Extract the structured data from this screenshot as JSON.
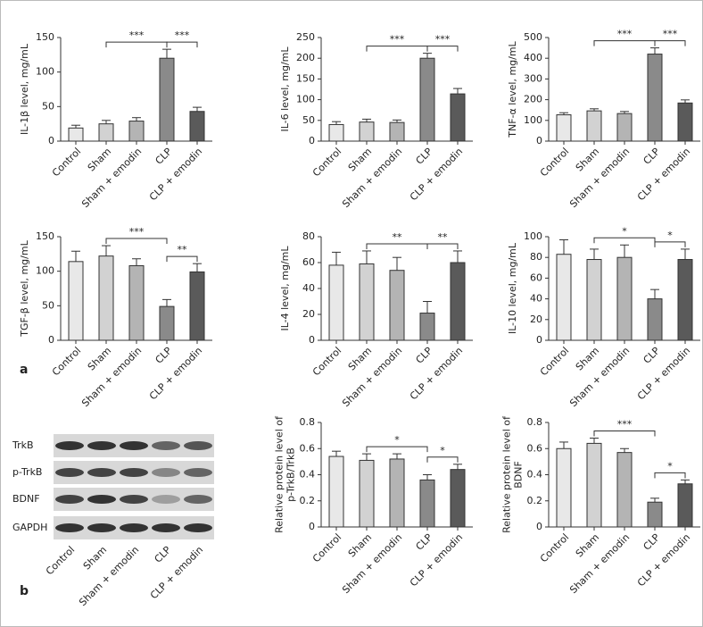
{
  "chart_data": [
    {
      "type": "bar",
      "ylabel": [
        "IL-1β level, mg/mL"
      ],
      "categories": [
        "Control",
        "Sham",
        "Sham + emodin",
        "CLP",
        "CLP + emodin"
      ],
      "values": [
        19,
        25,
        29,
        120,
        43
      ],
      "errors": [
        4,
        5,
        5,
        13,
        6
      ],
      "colors": [
        "#e8e8e8",
        "#d2d2d2",
        "#b4b4b4",
        "#8a8a8a",
        "#5a5a5a"
      ],
      "ylim": [
        0,
        150
      ],
      "yticks": [
        0,
        50,
        100,
        150
      ],
      "annotations": [
        {
          "text": "***",
          "from": "Sham",
          "to": "CLP"
        },
        {
          "text": "***",
          "from": "CLP",
          "to": "CLP + emodin"
        }
      ]
    },
    {
      "type": "bar",
      "ylabel": [
        "IL-6 level, mg/mL"
      ],
      "categories": [
        "Control",
        "Sham",
        "Sham + emodin",
        "CLP",
        "CLP + emodin"
      ],
      "values": [
        40,
        46,
        45,
        200,
        114
      ],
      "errors": [
        7,
        7,
        6,
        12,
        13
      ],
      "colors": [
        "#e8e8e8",
        "#d2d2d2",
        "#b4b4b4",
        "#8a8a8a",
        "#5a5a5a"
      ],
      "ylim": [
        0,
        250
      ],
      "yticks": [
        0,
        50,
        100,
        150,
        200,
        250
      ],
      "annotations": [
        {
          "text": "***",
          "from": "Sham",
          "to": "CLP"
        },
        {
          "text": "***",
          "from": "CLP",
          "to": "CLP + emodin"
        }
      ]
    },
    {
      "type": "bar",
      "ylabel": [
        "TNF-α level, mg/mL"
      ],
      "categories": [
        "Control",
        "Sham",
        "Sham + emodin",
        "CLP",
        "CLP + emodin"
      ],
      "values": [
        127,
        146,
        133,
        420,
        184
      ],
      "errors": [
        10,
        10,
        10,
        30,
        15
      ],
      "colors": [
        "#e8e8e8",
        "#d2d2d2",
        "#b4b4b4",
        "#8a8a8a",
        "#5a5a5a"
      ],
      "ylim": [
        0,
        500
      ],
      "yticks": [
        0,
        100,
        200,
        300,
        400,
        500
      ],
      "annotations": [
        {
          "text": "***",
          "from": "Sham",
          "to": "CLP"
        },
        {
          "text": "***",
          "from": "CLP",
          "to": "CLP + emodin"
        }
      ]
    },
    {
      "type": "bar",
      "ylabel": [
        "TGF-β level, mg/mL"
      ],
      "categories": [
        "Control",
        "Sham",
        "Sham + emodin",
        "CLP",
        "CLP + emodin"
      ],
      "values": [
        114,
        122,
        108,
        49,
        99
      ],
      "errors": [
        15,
        15,
        10,
        10,
        12
      ],
      "colors": [
        "#e8e8e8",
        "#d2d2d2",
        "#b4b4b4",
        "#8a8a8a",
        "#5a5a5a"
      ],
      "ylim": [
        0,
        150
      ],
      "yticks": [
        0,
        50,
        100,
        150
      ],
      "annotations": [
        {
          "text": "***",
          "from": "Sham",
          "to": "CLP"
        },
        {
          "text": "**",
          "from": "CLP",
          "to": "CLP + emodin"
        }
      ]
    },
    {
      "type": "bar",
      "ylabel": [
        "IL-4 level, mg/mL"
      ],
      "categories": [
        "Control",
        "Sham",
        "Sham + emodin",
        "CLP",
        "CLP + emodin"
      ],
      "values": [
        58,
        59,
        54,
        21,
        60
      ],
      "errors": [
        10,
        10,
        10,
        9,
        9
      ],
      "colors": [
        "#e8e8e8",
        "#d2d2d2",
        "#b4b4b4",
        "#8a8a8a",
        "#5a5a5a"
      ],
      "ylim": [
        0,
        80
      ],
      "yticks": [
        0,
        20,
        40,
        60,
        80
      ],
      "annotations": [
        {
          "text": "**",
          "from": "Sham",
          "to": "CLP"
        },
        {
          "text": "**",
          "from": "CLP",
          "to": "CLP + emodin"
        }
      ]
    },
    {
      "type": "bar",
      "ylabel": [
        "IL-10 level, mg/mL"
      ],
      "categories": [
        "Control",
        "Sham",
        "Sham + emodin",
        "CLP",
        "CLP + emodin"
      ],
      "values": [
        83,
        78,
        80,
        40,
        78
      ],
      "errors": [
        14,
        10,
        12,
        9,
        10
      ],
      "colors": [
        "#e8e8e8",
        "#d2d2d2",
        "#b4b4b4",
        "#8a8a8a",
        "#5a5a5a"
      ],
      "ylim": [
        0,
        100
      ],
      "yticks": [
        0,
        20,
        40,
        60,
        80,
        100
      ],
      "annotations": [
        {
          "text": "*",
          "from": "Sham",
          "to": "CLP"
        },
        {
          "text": "*",
          "from": "CLP",
          "to": "CLP + emodin"
        }
      ]
    },
    {
      "type": "bar",
      "ylabel": [
        "Relative protein level of",
        "p-TrkB/TrkB"
      ],
      "categories": [
        "Control",
        "Sham",
        "Sham + emodin",
        "CLP",
        "CLP + emodin"
      ],
      "values": [
        0.54,
        0.51,
        0.52,
        0.36,
        0.44
      ],
      "errors": [
        0.04,
        0.05,
        0.04,
        0.04,
        0.04
      ],
      "colors": [
        "#e8e8e8",
        "#d2d2d2",
        "#b4b4b4",
        "#8a8a8a",
        "#5a5a5a"
      ],
      "ylim": [
        0,
        0.8
      ],
      "yticks": [
        0,
        0.2,
        0.4,
        0.6,
        0.8
      ],
      "annotations": [
        {
          "text": "*",
          "from": "Sham",
          "to": "CLP"
        },
        {
          "text": "*",
          "from": "CLP",
          "to": "CLP + emodin"
        }
      ]
    },
    {
      "type": "bar",
      "ylabel": [
        "Relative protein level of",
        "BDNF"
      ],
      "categories": [
        "Control",
        "Sham",
        "Sham + emodin",
        "CLP",
        "CLP + emodin"
      ],
      "values": [
        0.6,
        0.64,
        0.57,
        0.19,
        0.33
      ],
      "errors": [
        0.05,
        0.04,
        0.03,
        0.03,
        0.03
      ],
      "colors": [
        "#e8e8e8",
        "#d2d2d2",
        "#b4b4b4",
        "#8a8a8a",
        "#5a5a5a"
      ],
      "ylim": [
        0,
        0.8
      ],
      "yticks": [
        0,
        0.2,
        0.4,
        0.6,
        0.8
      ],
      "annotations": [
        {
          "text": "***",
          "from": "Sham",
          "to": "CLP"
        },
        {
          "text": "*",
          "from": "CLP",
          "to": "CLP + emodin"
        }
      ]
    }
  ],
  "blot": {
    "rows": [
      "TrkB",
      "p-TrkB",
      "BDNF",
      "GAPDH"
    ],
    "lanes": [
      "Control",
      "Sham",
      "Sham + emodin",
      "CLP",
      "CLP + emodin"
    ]
  },
  "panel_labels": [
    "a",
    "b"
  ]
}
